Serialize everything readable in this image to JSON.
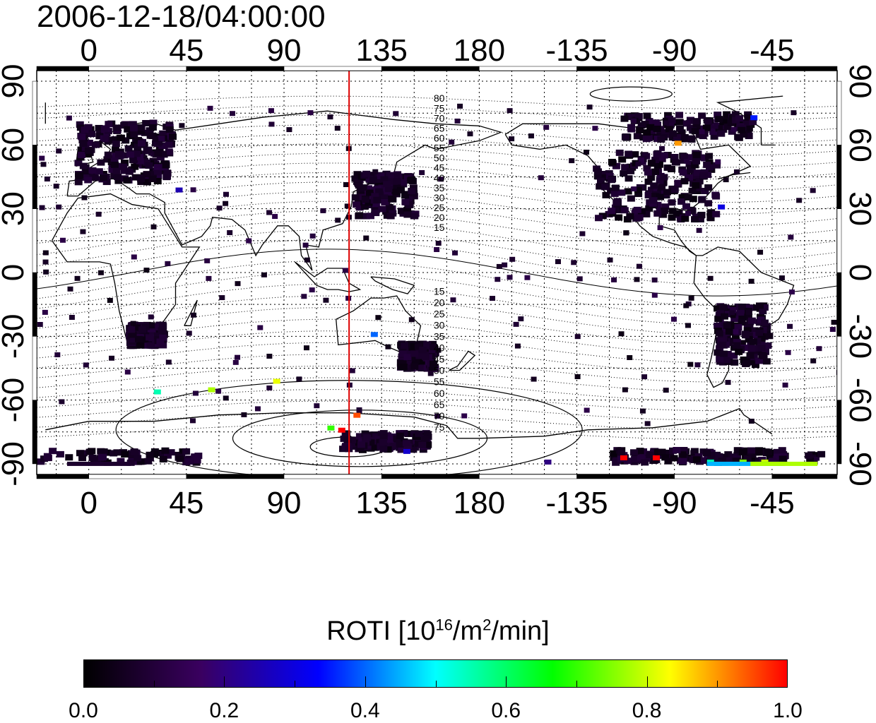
{
  "timestamp": "2006-12-18/04:00:00",
  "map": {
    "top_axis_labels": [
      "0",
      "45",
      "90",
      "135",
      "180",
      "-135",
      "-90",
      "-45"
    ],
    "bottom_axis_labels": [
      "0",
      "45",
      "90",
      "135",
      "180",
      "-135",
      "-90",
      "-45"
    ],
    "left_axis_labels": [
      "90",
      "60",
      "30",
      "0",
      "-30",
      "-60",
      "-90"
    ],
    "right_axis_labels": [
      "90",
      "60",
      "30",
      "0",
      "-30",
      "-60",
      "-90"
    ],
    "longitude_ticks": [
      0,
      45,
      90,
      135,
      180,
      -135,
      -90,
      -45
    ],
    "latitude_ticks": [
      90,
      60,
      30,
      0,
      -30,
      -60,
      -90
    ],
    "lon_range": [
      -24,
      345
    ],
    "lat_range": [
      -95,
      95
    ],
    "meridian_longitude": 120,
    "meridian_color": "#dd0000",
    "magnetic_lat_labels_north": [
      "80",
      "75",
      "70",
      "65",
      "60",
      "55",
      "50",
      "45",
      "40",
      "35",
      "30",
      "25",
      "20",
      "15"
    ],
    "magnetic_lat_labels_south": [
      "15",
      "20",
      "25",
      "30",
      "35",
      "40",
      "45",
      "50",
      "55",
      "60",
      "65",
      "70",
      "75"
    ]
  },
  "colorbar": {
    "title_main": "ROTI  [10",
    "title_sup1": "16",
    "title_mid": "/m",
    "title_sup2": "2",
    "title_end": "/min]",
    "tick_labels": [
      "0.0",
      "0.2",
      "0.4",
      "0.6",
      "0.8",
      "1.0"
    ],
    "range": [
      0.0,
      1.0
    ],
    "colors": [
      "#000000",
      "#3a0060",
      "#0000ff",
      "#00ffff",
      "#00ff00",
      "#ffff00",
      "#ff0000"
    ]
  }
}
